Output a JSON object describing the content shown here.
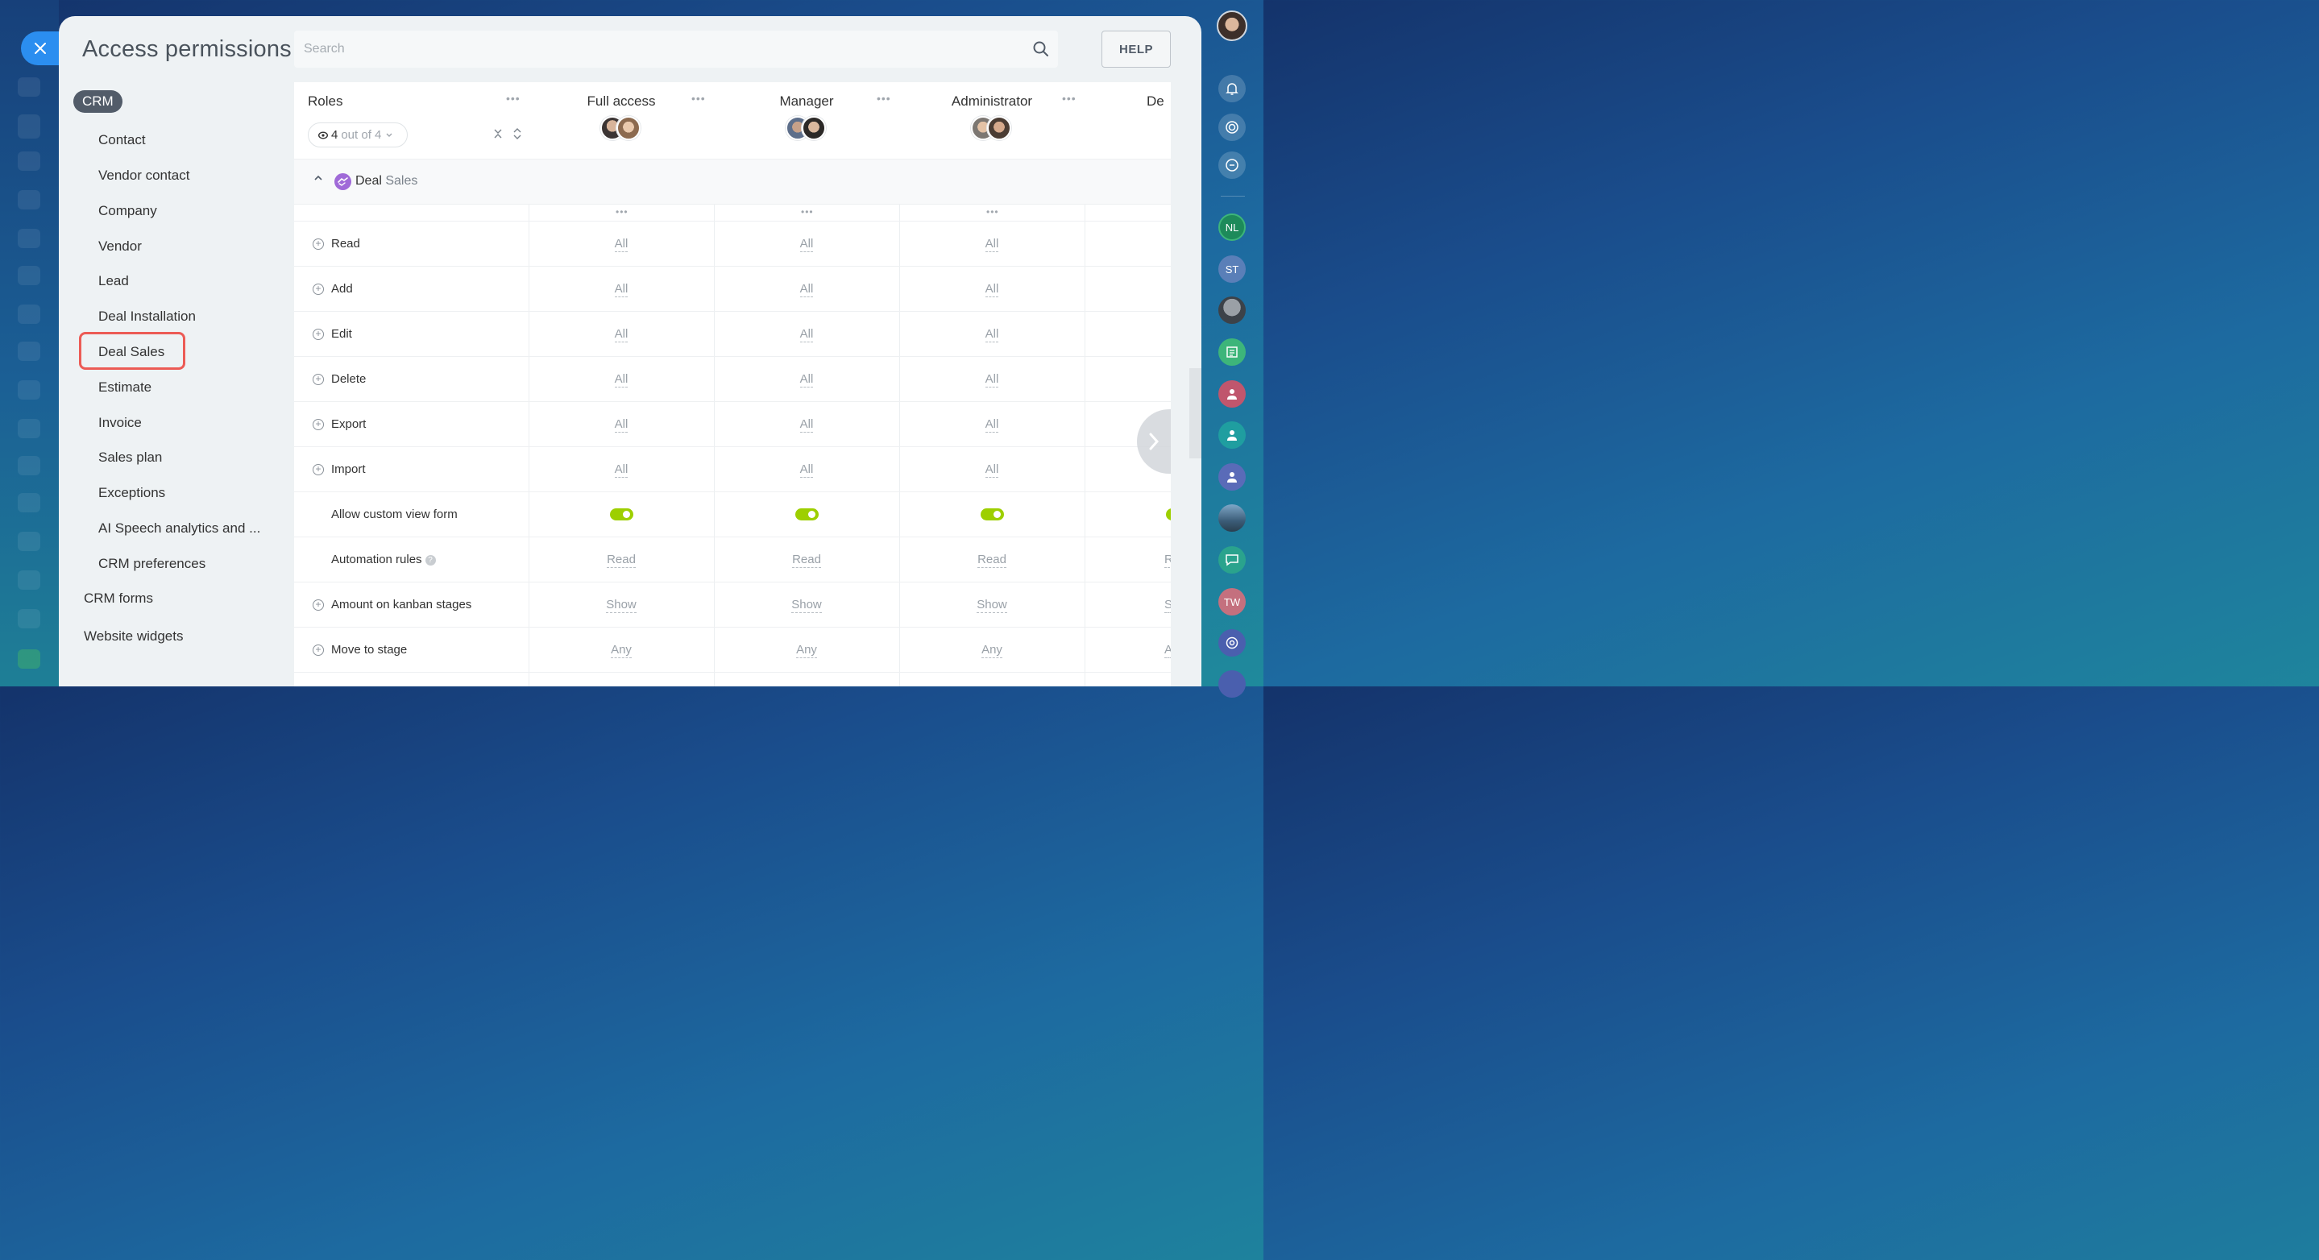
{
  "page": {
    "title": "Access permissions"
  },
  "search": {
    "placeholder": "Search"
  },
  "help_label": "HELP",
  "sidebar": {
    "chip": "CRM",
    "items": [
      "Contact",
      "Vendor contact",
      "Company",
      "Vendor",
      "Lead",
      "Deal Installation",
      "Deal Sales",
      "Estimate",
      "Invoice",
      "Sales plan",
      "Exceptions",
      "AI Speech analytics and ...",
      "CRM preferences"
    ],
    "top_items": [
      "CRM forms",
      "Website widgets"
    ],
    "active": "Deal Sales"
  },
  "table": {
    "roles_title": "Roles",
    "filter": {
      "count": "4",
      "of": "out of 4"
    },
    "roles": [
      "Full access",
      "Manager",
      "Administrator",
      "De"
    ],
    "section": {
      "part1": "Deal",
      "part2": "Sales"
    },
    "rows": [
      {
        "label": "Read",
        "values": [
          "All",
          "All",
          "All"
        ]
      },
      {
        "label": "Add",
        "values": [
          "All",
          "All",
          "All"
        ]
      },
      {
        "label": "Edit",
        "values": [
          "All",
          "All",
          "All"
        ]
      },
      {
        "label": "Delete",
        "values": [
          "All",
          "All",
          "All"
        ]
      },
      {
        "label": "Export",
        "values": [
          "All",
          "All",
          "All"
        ]
      },
      {
        "label": "Import",
        "values": [
          "All",
          "All",
          "All"
        ]
      },
      {
        "label": "Allow custom view form",
        "toggle": true
      },
      {
        "label": "Automation rules",
        "values": [
          "Read",
          "Read",
          "Read"
        ],
        "partial": "R"
      },
      {
        "label": "Amount on kanban stages",
        "values": [
          "Show",
          "Show",
          "Show"
        ],
        "partial": "S"
      },
      {
        "label": "Move to stage",
        "values": [
          "Any",
          "Any",
          "Any"
        ],
        "partial": "A"
      }
    ]
  },
  "rail": {
    "initials": [
      "NL",
      "ST",
      "TW"
    ]
  },
  "colors": {
    "accent": "#2b8ef0",
    "toggle_on": "#9dcf00",
    "highlight": "#ec5b55",
    "chip": "#525c69"
  }
}
